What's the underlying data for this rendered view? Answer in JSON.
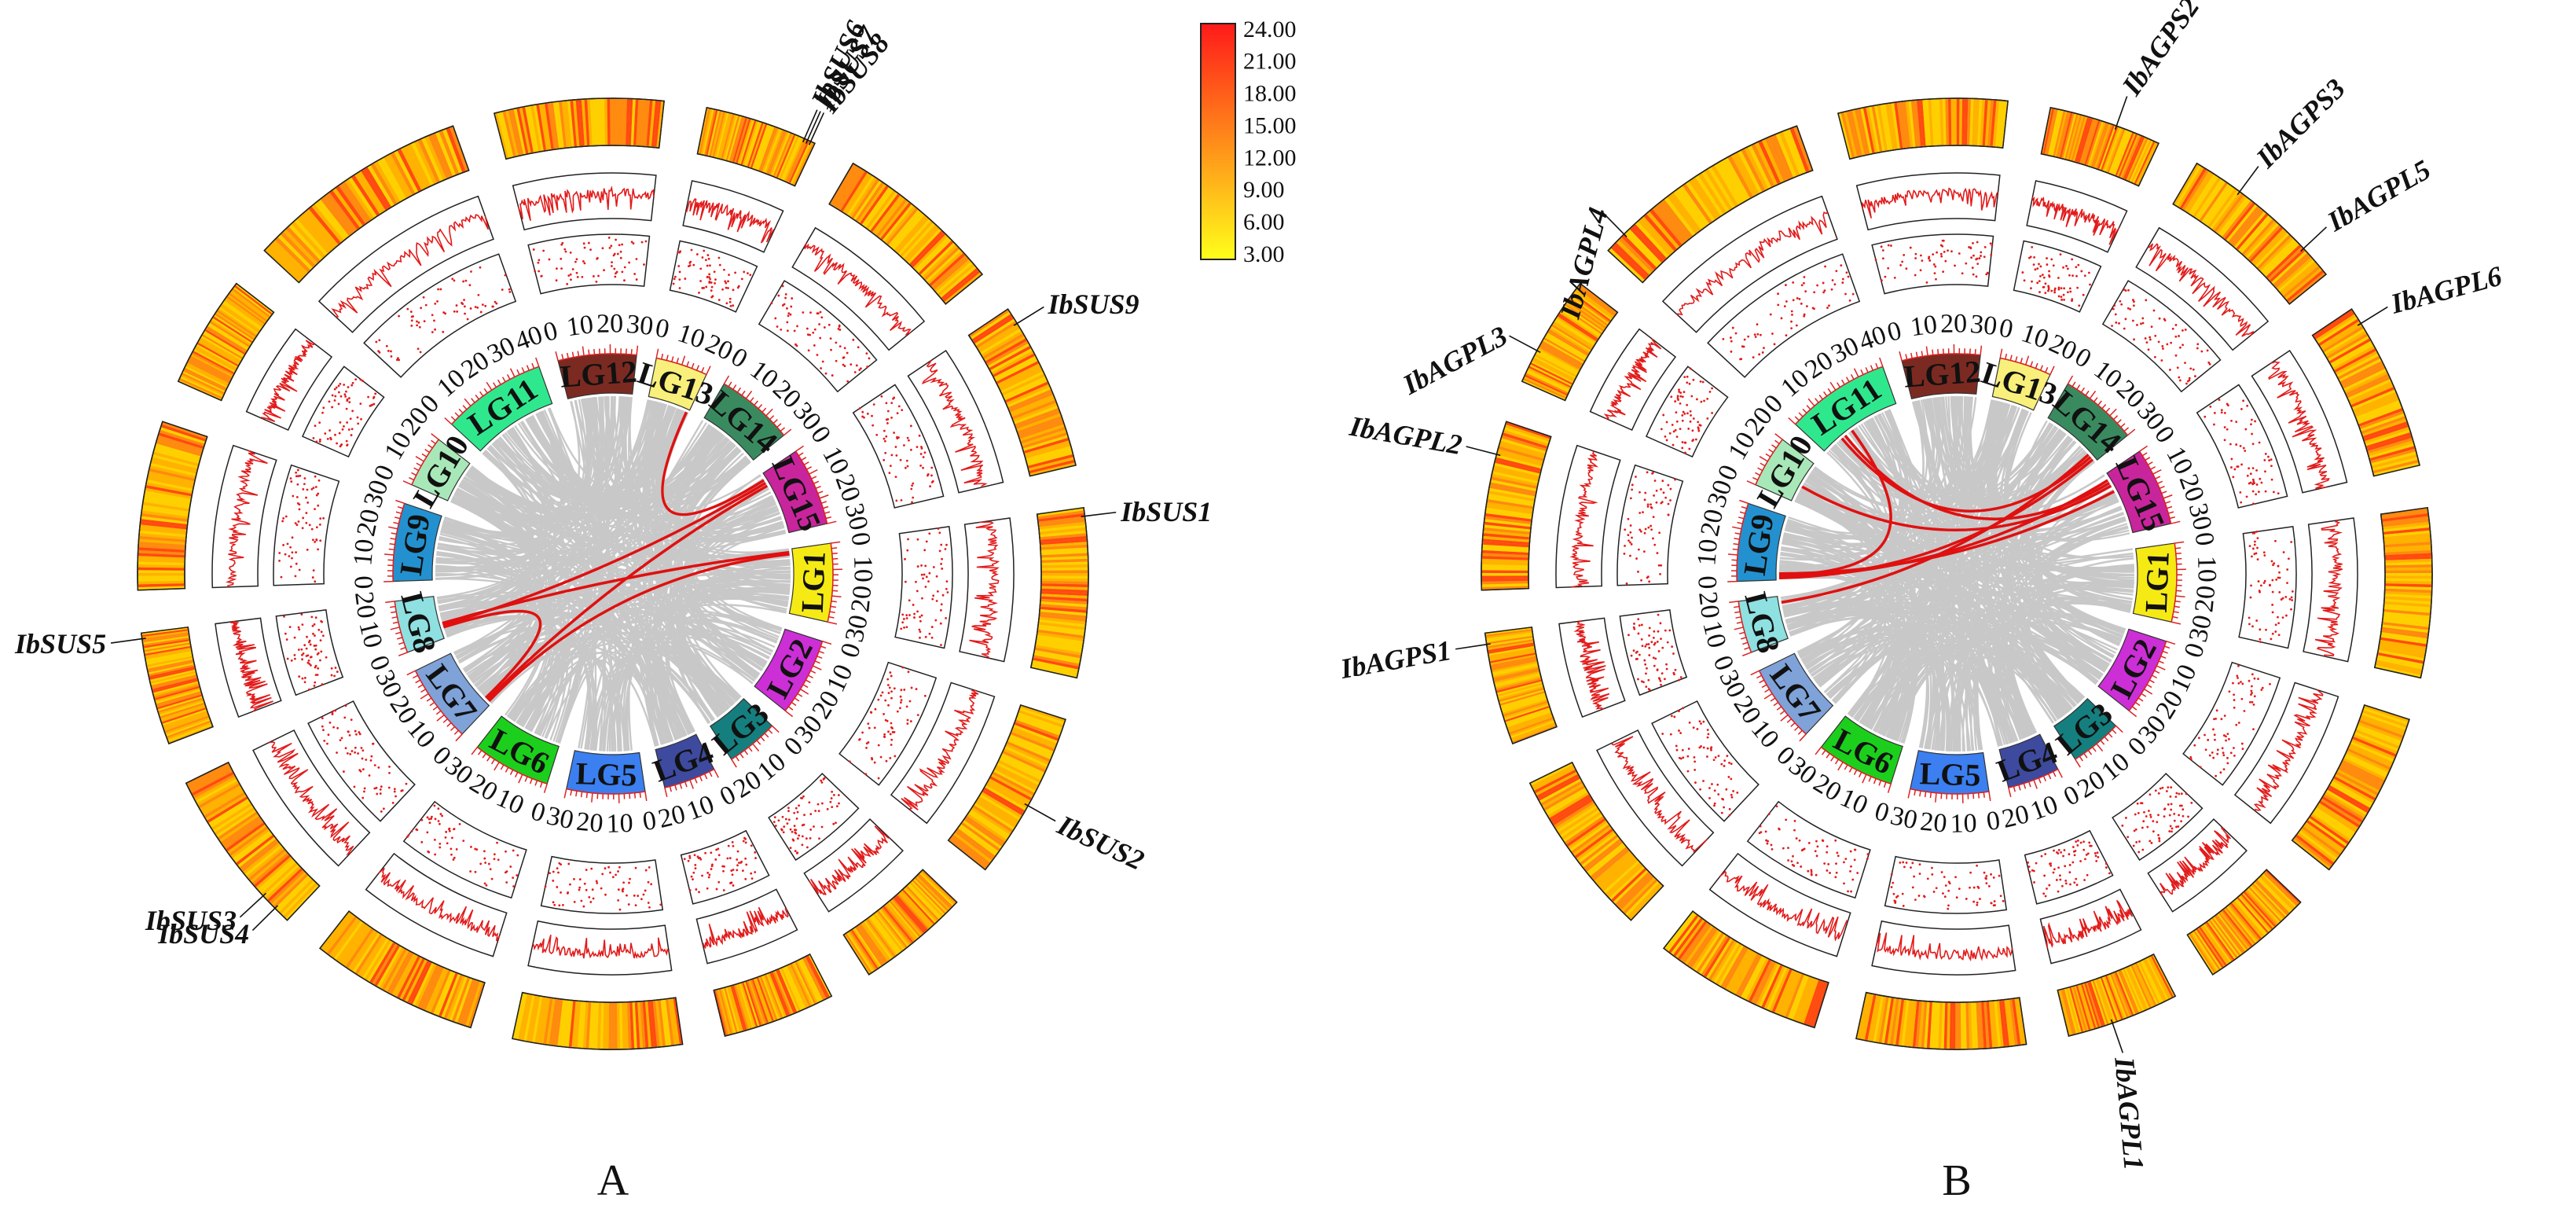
{
  "chromosomes": [
    {
      "name": "LG1",
      "color": "#f5ea14",
      "max": 30,
      "ticks": [
        0,
        10,
        20,
        30
      ]
    },
    {
      "name": "LG2",
      "color": "#cc2fd6",
      "max": 30,
      "ticks": [
        0,
        10,
        20,
        30
      ]
    },
    {
      "name": "LG3",
      "color": "#157f7f",
      "max": 20,
      "ticks": [
        0,
        10,
        20
      ]
    },
    {
      "name": "LG4",
      "color": "#3d4a9e",
      "max": 20,
      "ticks": [
        0,
        10,
        20
      ]
    },
    {
      "name": "LG5",
      "color": "#3b7ff0",
      "max": 30,
      "ticks": [
        0,
        10,
        20,
        30
      ]
    },
    {
      "name": "LG6",
      "color": "#1ccf1c",
      "max": 30,
      "ticks": [
        0,
        10,
        20,
        30
      ]
    },
    {
      "name": "LG7",
      "color": "#7fa2d8",
      "max": 30,
      "ticks": [
        0,
        10,
        20,
        30
      ]
    },
    {
      "name": "LG8",
      "color": "#8fe0e0",
      "max": 20,
      "ticks": [
        0,
        10,
        20
      ]
    },
    {
      "name": "LG9",
      "color": "#2391cf",
      "max": 30,
      "ticks": [
        0,
        10,
        20,
        30
      ]
    },
    {
      "name": "LG10",
      "color": "#a8e8b8",
      "max": 20,
      "ticks": [
        0,
        10,
        20
      ]
    },
    {
      "name": "LG11",
      "color": "#2fe88e",
      "max": 40,
      "ticks": [
        0,
        10,
        20,
        30,
        40
      ]
    },
    {
      "name": "LG12",
      "color": "#7b2a22",
      "max": 30,
      "ticks": [
        0,
        10,
        20,
        30
      ]
    },
    {
      "name": "LG13",
      "color": "#f8f07a",
      "max": 20,
      "ticks": [
        0,
        10,
        20
      ]
    },
    {
      "name": "LG14",
      "color": "#3a8a60",
      "max": 30,
      "ticks": [
        0,
        10,
        20,
        30
      ]
    },
    {
      "name": "LG15",
      "color": "#c8259c",
      "max": 30,
      "ticks": [
        0,
        10,
        20,
        30
      ]
    }
  ],
  "legend": {
    "values": [
      "24.00",
      "21.00",
      "18.00",
      "15.00",
      "12.00",
      "9.00",
      "6.00",
      "3.00"
    ],
    "color_high": "#ff1a1a",
    "color_mid": "#ff8c1a",
    "color_low": "#ffff1a"
  },
  "panels": [
    {
      "letter": "A",
      "genes": [
        {
          "text": "IbSUS6",
          "lg": "LG13",
          "pos": 0.9,
          "angle": -65
        },
        {
          "text": "IbSUS7",
          "lg": "LG13",
          "pos": 0.93,
          "angle": -58
        },
        {
          "text": "IbSUS8",
          "lg": "LG13",
          "pos": 0.96,
          "angle": -51
        },
        {
          "text": "IbSUS9",
          "lg": "LG15",
          "pos": 0.1,
          "angle": 0
        },
        {
          "text": "IbSUS1",
          "lg": "LG1",
          "pos": 0.05,
          "angle": 0
        },
        {
          "text": "IbSUS2",
          "lg": "LG2",
          "pos": 0.55,
          "angle": 25
        },
        {
          "text": "IbSUS5",
          "lg": "LG8",
          "pos": 0.95,
          "angle": 0
        },
        {
          "text": "IbSUS4",
          "lg": "LG7",
          "pos": 0.1,
          "angle": 0
        },
        {
          "text": "IbSUS3",
          "lg": "LG7",
          "pos": 0.2,
          "angle": 0
        }
      ],
      "links": [
        {
          "from": [
            "LG8",
            0.3
          ],
          "to": [
            "LG15",
            0.15
          ]
        },
        {
          "from": [
            "LG8",
            0.35
          ],
          "to": [
            "LG1",
            0.05
          ]
        },
        {
          "from": [
            "LG7",
            0.08
          ],
          "to": [
            "LG15",
            0.2
          ]
        },
        {
          "from": [
            "LG7",
            0.12
          ],
          "to": [
            "LG8",
            0.25
          ]
        },
        {
          "from": [
            "LG13",
            0.95
          ],
          "to": [
            "LG15",
            0.1
          ]
        },
        {
          "from": [
            "LG7",
            0.05
          ],
          "to": [
            "LG1",
            0.08
          ]
        }
      ]
    },
    {
      "letter": "B",
      "genes": [
        {
          "text": "IbAGPL4",
          "lg": "LG11",
          "pos": 0.1,
          "angle": -75
        },
        {
          "text": "IbAGPS2",
          "lg": "LG13",
          "pos": 0.6,
          "angle": -55
        },
        {
          "text": "IbAGPS3",
          "lg": "LG14",
          "pos": 0.3,
          "angle": -45
        },
        {
          "text": "IbAGPL3",
          "lg": "LG10",
          "pos": 0.3,
          "angle": -28
        },
        {
          "text": "IbAGPL5",
          "lg": "LG14",
          "pos": 0.8,
          "angle": -30
        },
        {
          "text": "IbAGPL6",
          "lg": "LG15",
          "pos": 0.1,
          "angle": -15
        },
        {
          "text": "IbAGPL2",
          "lg": "LG9",
          "pos": 0.8,
          "angle": 10
        },
        {
          "text": "IbAGPS1",
          "lg": "LG8",
          "pos": 0.9,
          "angle": -10
        },
        {
          "text": "IbAGPL1",
          "lg": "LG4",
          "pos": 0.6,
          "angle": 85
        }
      ],
      "links": [
        {
          "from": [
            "LG9",
            0.05
          ],
          "to": [
            "LG15",
            0.1
          ]
        },
        {
          "from": [
            "LG9",
            0.03
          ],
          "to": [
            "LG14",
            0.95
          ]
        },
        {
          "from": [
            "LG9",
            0.08
          ],
          "to": [
            "LG11",
            0.4
          ]
        },
        {
          "from": [
            "LG11",
            0.3
          ],
          "to": [
            "LG15",
            0.15
          ]
        },
        {
          "from": [
            "LG10",
            0.4
          ],
          "to": [
            "LG15",
            0.2
          ]
        },
        {
          "from": [
            "LG11",
            0.25
          ],
          "to": [
            "LG14",
            0.9
          ]
        },
        {
          "from": [
            "LG8",
            0.85
          ],
          "to": [
            "LG14",
            0.85
          ]
        },
        {
          "from": [
            "LG9",
            0.1
          ],
          "to": [
            "LG15",
            0.3
          ]
        }
      ]
    }
  ]
}
